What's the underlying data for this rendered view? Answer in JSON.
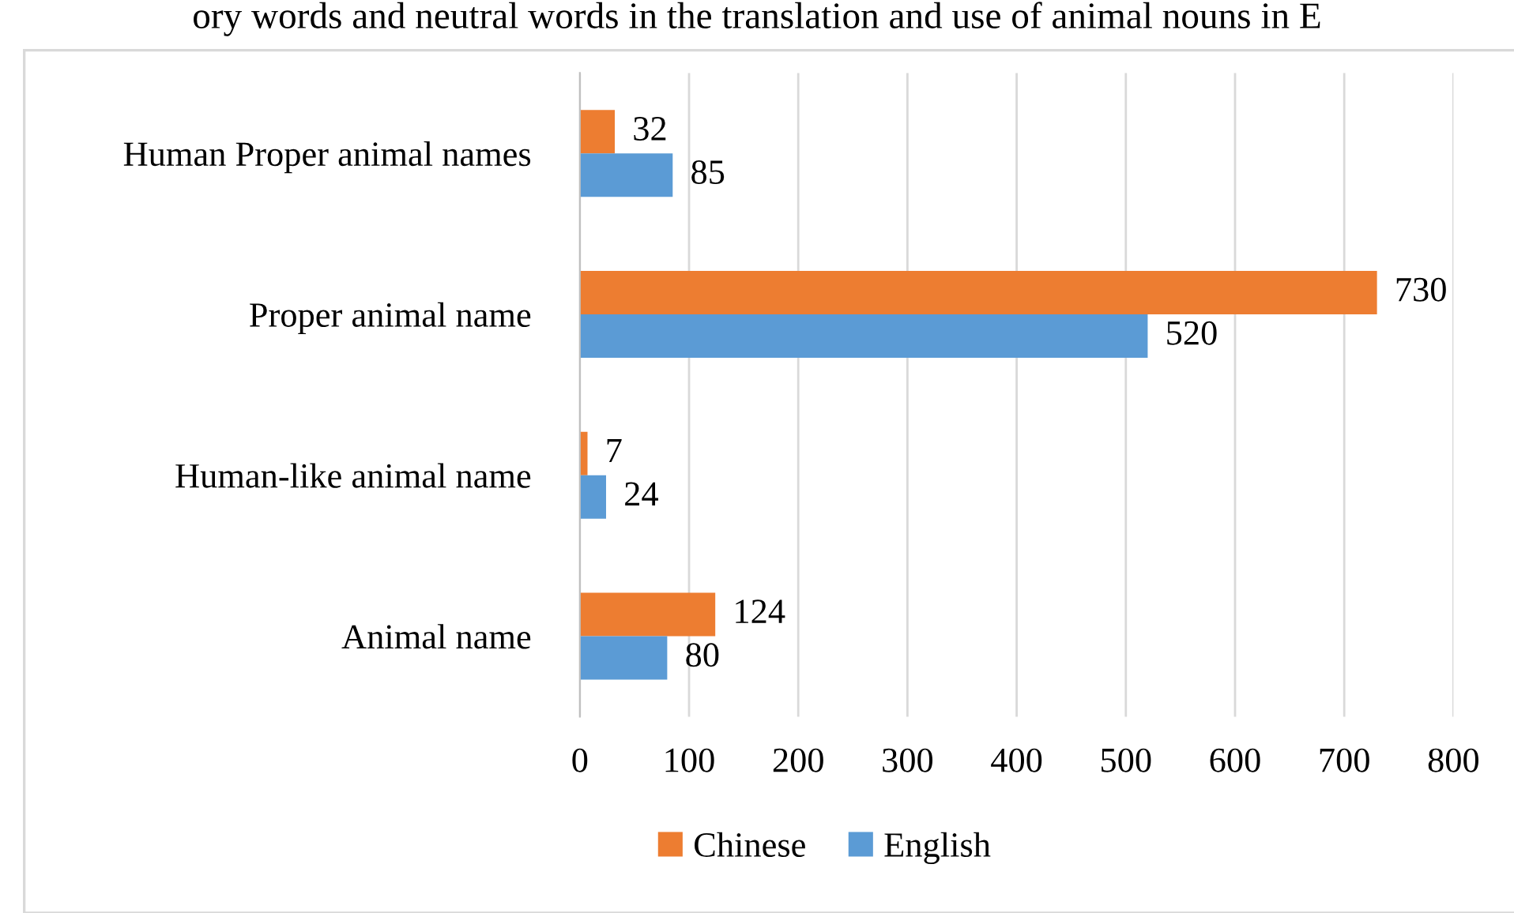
{
  "chart_data": {
    "type": "bar",
    "orientation": "horizontal",
    "title": "ory words and neutral words in the translation and use of animal nouns in E",
    "categories": [
      "Human Proper animal names",
      "Proper animal name",
      "Human-like animal name",
      "Animal name"
    ],
    "series": [
      {
        "name": "Chinese",
        "color": "#ed7d31",
        "values": [
          32,
          730,
          7,
          124
        ]
      },
      {
        "name": "English",
        "color": "#5b9bd5",
        "values": [
          85,
          520,
          24,
          80
        ]
      }
    ],
    "xlim": [
      0,
      800
    ],
    "xticks": [
      0,
      100,
      200,
      300,
      400,
      500,
      600,
      700,
      800
    ],
    "grid": "x",
    "legend": "bottom",
    "data_labels": true
  }
}
